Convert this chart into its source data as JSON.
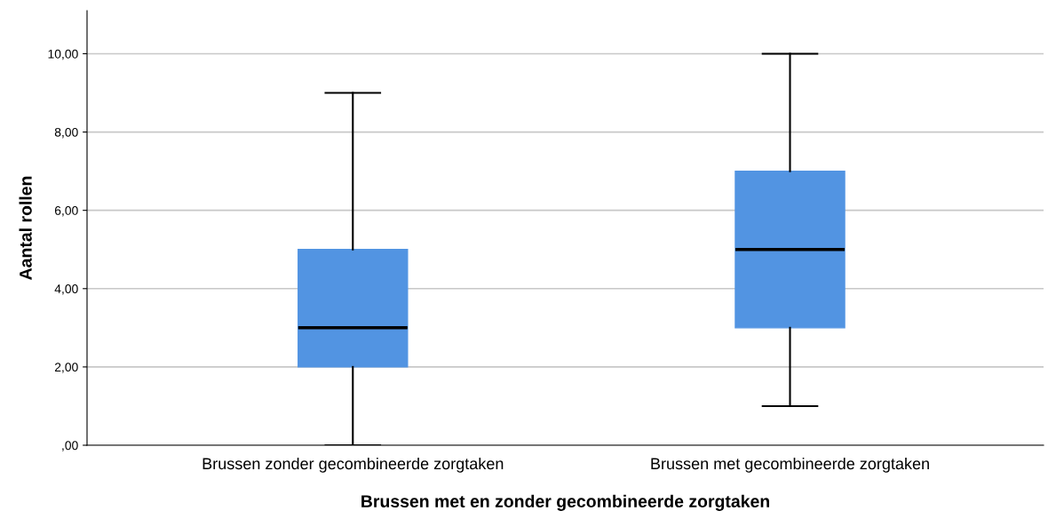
{
  "chart_data": {
    "type": "box",
    "xlabel": "Brussen met en zonder gecombineerde zorgtaken",
    "ylabel": "Aantal rollen",
    "categories": [
      "Brussen zonder gecombineerde zorgtaken",
      "Brussen met gecombineerde zorgtaken"
    ],
    "series": [
      {
        "color": "#5294e2",
        "boxes": [
          {
            "low": 0,
            "q1": 2,
            "median": 3,
            "q3": 5,
            "high": 9
          },
          {
            "low": 1,
            "q1": 3,
            "median": 5,
            "q3": 7,
            "high": 10
          }
        ]
      }
    ],
    "ylim": [
      0,
      11.1
    ],
    "yticks": [
      {
        "value": 0,
        "label": ",00"
      },
      {
        "value": 2,
        "label": "2,00"
      },
      {
        "value": 4,
        "label": "4,00"
      },
      {
        "value": 6,
        "label": "6,00"
      },
      {
        "value": 8,
        "label": "8,00"
      },
      {
        "value": 10,
        "label": "10,00"
      }
    ],
    "grid": "y"
  }
}
